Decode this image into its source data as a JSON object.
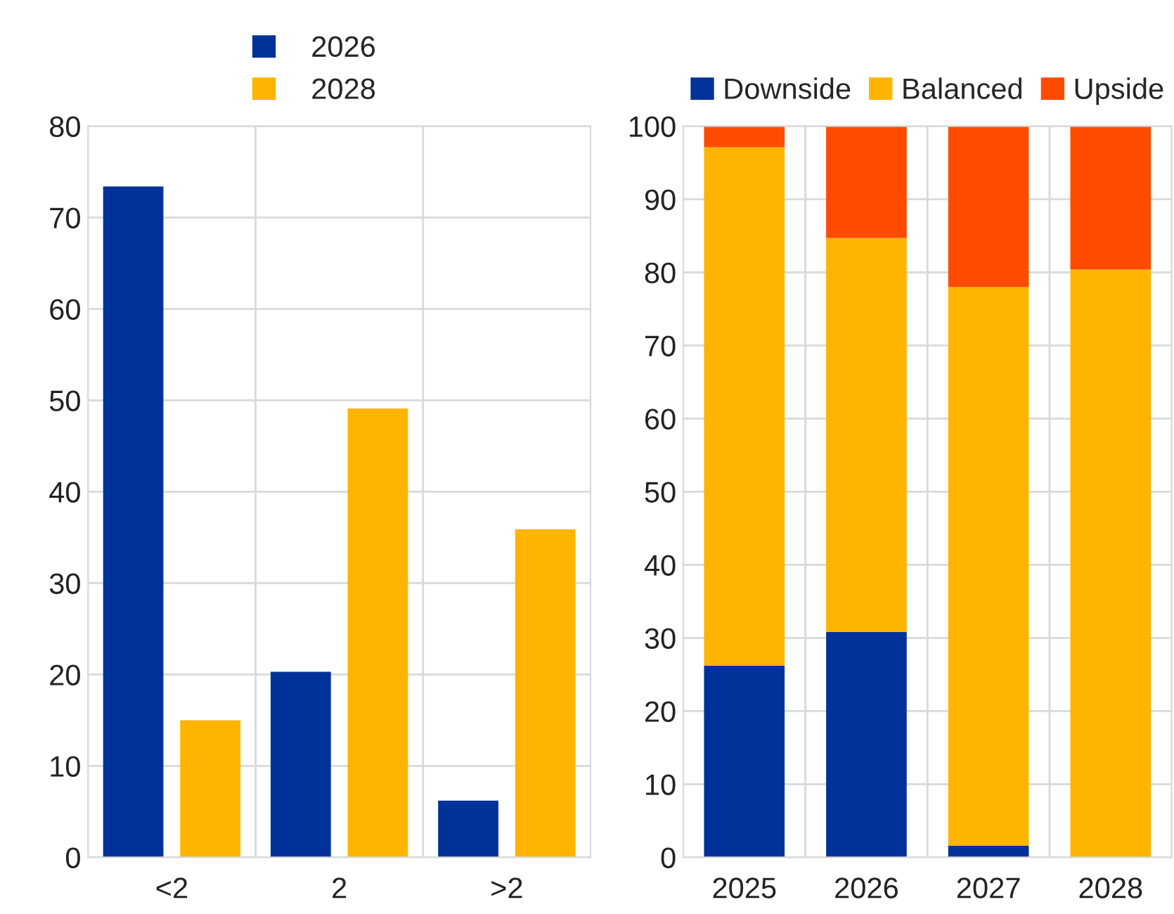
{
  "chart_data": [
    {
      "type": "bar",
      "categories": [
        "<2",
        "2",
        ">2"
      ],
      "series": [
        {
          "name": "2026",
          "color": "#003299",
          "values": [
            73.4,
            20.3,
            6.2
          ]
        },
        {
          "name": "2028",
          "color": "#ffb400",
          "values": [
            15.0,
            49.1,
            35.9
          ]
        }
      ],
      "ylim": [
        0,
        80
      ],
      "yticks": [
        0,
        10,
        20,
        30,
        40,
        50,
        60,
        70,
        80
      ],
      "grid": true,
      "legend": "top"
    },
    {
      "type": "bar",
      "stacked": true,
      "categories": [
        "2025",
        "2026",
        "2027",
        "2028"
      ],
      "series": [
        {
          "name": "Downside",
          "color": "#003299",
          "values": [
            26.2,
            30.8,
            1.6,
            0
          ]
        },
        {
          "name": "Balanced",
          "color": "#ffb400",
          "values": [
            70.9,
            53.9,
            76.4,
            80.4
          ]
        },
        {
          "name": "Upside",
          "color": "#ff4b00",
          "values": [
            2.9,
            15.3,
            22.0,
            19.6
          ]
        }
      ],
      "ylim": [
        0,
        100
      ],
      "yticks": [
        0,
        10,
        20,
        30,
        40,
        50,
        60,
        70,
        80,
        90,
        100
      ],
      "grid": true,
      "legend": "top"
    }
  ]
}
